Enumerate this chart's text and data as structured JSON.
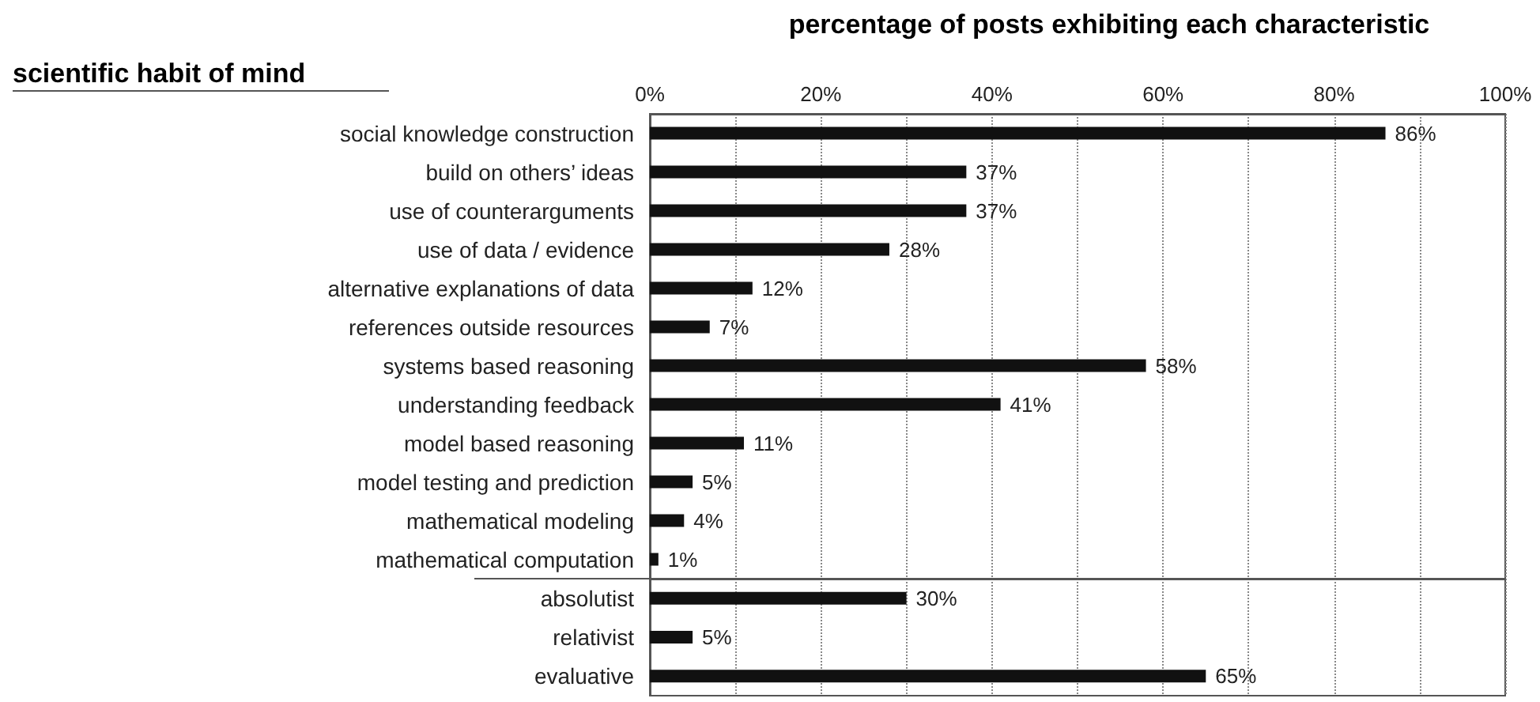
{
  "chart_data": [
    {
      "type": "bar",
      "orientation": "horizontal",
      "title": "percentage of posts exhibiting each characteristic",
      "ylabel": "scientific habit of mind",
      "categories": [
        "social knowledge construction",
        "build on others’ ideas",
        "use of counterarguments",
        "use of data / evidence",
        "alternative explanations of data",
        "references outside resources",
        "systems based reasoning",
        "understanding feedback",
        "model based reasoning",
        "model testing and prediction",
        "mathematical modeling",
        "mathematical computation"
      ],
      "values": [
        86,
        37,
        37,
        28,
        12,
        7,
        58,
        41,
        11,
        5,
        4,
        1
      ],
      "value_labels": [
        "86%",
        "37%",
        "37%",
        "28%",
        "12%",
        "7%",
        "58%",
        "41%",
        "11%",
        "5%",
        "4%",
        "1%"
      ],
      "color": "#111111",
      "xlim": [
        0,
        100
      ],
      "xticks": [
        {
          "value": 0,
          "label": "0%"
        },
        {
          "value": 10,
          "label": null
        },
        {
          "value": 20,
          "label": "20%"
        },
        {
          "value": 30,
          "label": null
        },
        {
          "value": 40,
          "label": "40%"
        },
        {
          "value": 50,
          "label": null
        },
        {
          "value": 60,
          "label": "60%"
        },
        {
          "value": 70,
          "label": null
        },
        {
          "value": 80,
          "label": "80%"
        },
        {
          "value": 90,
          "label": null
        },
        {
          "value": 100,
          "label": "100%"
        }
      ],
      "grid": "x"
    },
    {
      "type": "bar",
      "orientation": "horizontal",
      "categories": [
        "absolutist",
        "relativist",
        "evaluative"
      ],
      "values": [
        30,
        5,
        65
      ],
      "value_labels": [
        "30%",
        "5%",
        "65%"
      ],
      "color": "#111111",
      "xlim": [
        0,
        100
      ],
      "xticks": [
        {
          "value": 0,
          "label": null
        },
        {
          "value": 10,
          "label": null
        },
        {
          "value": 20,
          "label": null
        },
        {
          "value": 30,
          "label": null
        },
        {
          "value": 40,
          "label": null
        },
        {
          "value": 50,
          "label": null
        },
        {
          "value": 60,
          "label": null
        },
        {
          "value": 70,
          "label": null
        },
        {
          "value": 80,
          "label": null
        },
        {
          "value": 90,
          "label": null
        },
        {
          "value": 100,
          "label": null
        }
      ],
      "grid": "x",
      "tick_labels": "y"
    }
  ]
}
